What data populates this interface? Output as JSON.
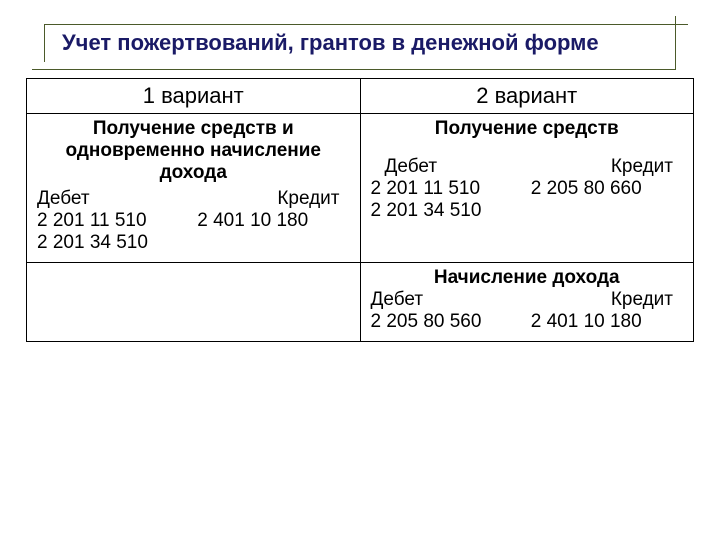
{
  "title": "Учет пожертвований, грантов в денежной форме",
  "table": {
    "headers": [
      "1 вариант",
      "2 вариант"
    ],
    "row1": {
      "left": {
        "heading": "Получение средств и одновременно начисление дохода",
        "debit_label": "Дебет",
        "credit_label": "Кредит",
        "debit_lines": [
          "2 201 11 510",
          "2 201 34 510"
        ],
        "credit_lines": [
          "2 401 10 180"
        ]
      },
      "right": {
        "heading": "Получение средств",
        "debit_label": "Дебет",
        "credit_label": "Кредит",
        "debit_lines": [
          "2 201 11 510",
          "2 201 34 510"
        ],
        "credit_lines": [
          "2 205 80 660"
        ]
      }
    },
    "row2": {
      "left": {
        "content": ""
      },
      "right": {
        "heading": "Начисление дохода",
        "debit_label": "Дебет",
        "credit_label": "Кредит",
        "debit_lines": [
          "2 205 80 560"
        ],
        "credit_lines": [
          "2 401 10 180"
        ]
      }
    }
  }
}
